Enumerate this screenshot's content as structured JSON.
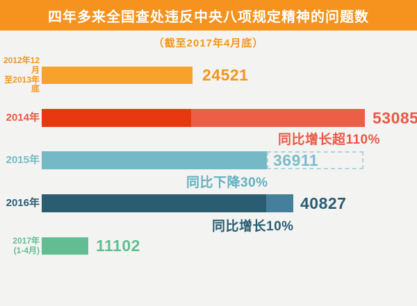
{
  "header": {
    "title": "四年多来全国查处违反中央八项规定精神的问题数",
    "subtitle": "（截至2017年4月底）"
  },
  "colors": {
    "background": "#F3F4F2",
    "header_bar": "#F6921E",
    "orange": "#F9A12D",
    "red_dark": "#E8380F",
    "red": "#EB5F47",
    "teal": "#76B9C6",
    "teal_dashed_border": "#ACD3DA",
    "teal_dark": "#2A5C72",
    "teal_mid": "#44809B",
    "green": "#62BE92"
  },
  "chart_data": {
    "type": "bar",
    "orientation": "horizontal",
    "title": "四年多来全国查处违反中央八项规定精神的问题数",
    "subtitle": "（截至2017年4月底）",
    "categories": [
      "2012年12月至2013年底",
      "2014年",
      "2015年",
      "2016年",
      "2017年(1-4月)"
    ],
    "values": [
      24521,
      53085,
      36911,
      40827,
      11102
    ],
    "annotations": [
      "",
      "同比增长超110%",
      "同比下降30%",
      "同比增长10%",
      ""
    ],
    "bars": [
      {
        "label_lines": [
          "2012年12月",
          "至2013年底"
        ],
        "value": "24521",
        "color": "#F9A12D",
        "annotation": ""
      },
      {
        "label_lines": [
          "2014年"
        ],
        "value": "53085",
        "color": "#EB5F47",
        "inner_segment_color": "#E8380F",
        "inner_segment_value": 24521,
        "annotation": "同比增长超110%"
      },
      {
        "label_lines": [
          "2015年"
        ],
        "value": "36911",
        "color": "#76B9C6",
        "dashed_outline_to_value": 53085,
        "annotation": "同比下降30%"
      },
      {
        "label_lines": [
          "2016年"
        ],
        "value": "40827",
        "color": "#2A5C72",
        "inner_segment_color": "#44809B",
        "inner_segment_value": 36911,
        "annotation": "同比增长10%"
      },
      {
        "label_lines": [
          "2017年",
          "(1-4月)"
        ],
        "value": "11102",
        "color": "#62BE92",
        "annotation": ""
      }
    ]
  }
}
